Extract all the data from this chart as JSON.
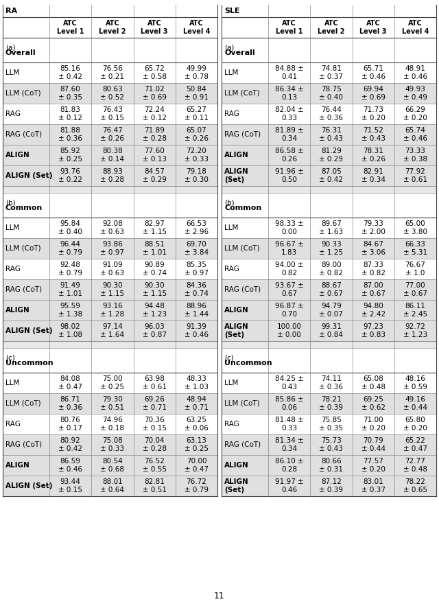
{
  "page_number": "11",
  "col_headers": [
    "ATC\nLevel 1",
    "ATC\nLevel 2",
    "ATC\nLevel 3",
    "ATC\nLevel 4"
  ],
  "sections": [
    {
      "label_light": "(a)",
      "label_bold": "Overall",
      "ra_rows": [
        {
          "name": "LLM",
          "vals": [
            "85.16\n± 0.42",
            "76.56\n± 0.21",
            "65.72\n± 0.58",
            "49.99\n± 0.78"
          ],
          "bold": false,
          "shaded": false
        },
        {
          "name": "LLM (CoT)",
          "vals": [
            "87.60\n± 0.35",
            "80.63\n± 0.52",
            "71.02\n± 0.69",
            "50.84\n± 0.91"
          ],
          "bold": false,
          "shaded": true
        },
        {
          "name": "RAG",
          "vals": [
            "81.83\n± 0.12",
            "76.43\n± 0.15",
            "72.24\n± 0.12",
            "65.27\n± 0.11"
          ],
          "bold": false,
          "shaded": false
        },
        {
          "name": "RAG (CoT)",
          "vals": [
            "81.88\n± 0.36",
            "76.47\n± 0.26",
            "71.89\n± 0.28",
            "65.07\n± 0.26"
          ],
          "bold": false,
          "shaded": true
        },
        {
          "name": "ALIGN",
          "vals": [
            "85.92\n± 0.25",
            "80.38\n± 0.14",
            "77.60\n± 0.13",
            "72.20\n± 0.33"
          ],
          "bold": true,
          "shaded": true
        },
        {
          "name": "ALIGN (Set)",
          "vals": [
            "93.76\n± 0.22",
            "88.93\n± 0.28",
            "84.57\n± 0.29",
            "79.18\n± 0.30"
          ],
          "bold": true,
          "shaded": true
        }
      ],
      "sle_rows": [
        {
          "name": "LLM",
          "vals": [
            "84.88 ±\n0.41",
            "74.81\n± 0.37",
            "65.71\n± 0.46",
            "48.91\n± 0.46"
          ],
          "bold": false,
          "shaded": false
        },
        {
          "name": "LLM (CoT)",
          "vals": [
            "86.34 ±\n0.13",
            "78.75\n± 0.40",
            "69.94\n± 0.69",
            "49.93\n± 0.49"
          ],
          "bold": false,
          "shaded": true
        },
        {
          "name": "RAG",
          "vals": [
            "82.04 ±\n0.33",
            "76.44\n± 0.36",
            "71.73\n± 0.20",
            "66.29\n± 0.20"
          ],
          "bold": false,
          "shaded": false
        },
        {
          "name": "RAG (CoT)",
          "vals": [
            "81.89 ±\n0.34",
            "76.31\n± 0.43",
            "71.52\n± 0.43",
            "65.74\n± 0.46"
          ],
          "bold": false,
          "shaded": true
        },
        {
          "name": "ALIGN",
          "vals": [
            "86.58 ±\n0.26",
            "81.29\n± 0.29",
            "78.31\n± 0.26",
            "73.33\n± 0.38"
          ],
          "bold": true,
          "shaded": true
        },
        {
          "name": "ALIGN\n(Set)",
          "vals": [
            "91.96 ±\n0.50",
            "87.05\n± 0.42",
            "82.91\n± 0.34",
            "77.92\n± 0.61"
          ],
          "bold": true,
          "shaded": true
        }
      ]
    },
    {
      "label_light": "(b)",
      "label_bold": "Common",
      "ra_rows": [
        {
          "name": "LLM",
          "vals": [
            "95.84\n± 0.40",
            "92.08\n± 0.63",
            "82.97\n± 1.15",
            "66.53\n± 2.96"
          ],
          "bold": false,
          "shaded": false
        },
        {
          "name": "LLM (CoT)",
          "vals": [
            "96.44\n± 0.79",
            "93.86\n± 0.97",
            "88.51\n± 1.01",
            "69.70\n± 3.84"
          ],
          "bold": false,
          "shaded": true
        },
        {
          "name": "RAG",
          "vals": [
            "92.48\n± 0.79",
            "91.09\n± 0.63",
            "90.89\n± 0.74",
            "85.35\n± 0.97"
          ],
          "bold": false,
          "shaded": false
        },
        {
          "name": "RAG (CoT)",
          "vals": [
            "91.49\n± 1.01",
            "90.30\n± 1.15",
            "90.30\n± 1.15",
            "84.36\n± 0.74"
          ],
          "bold": false,
          "shaded": true
        },
        {
          "name": "ALIGN",
          "vals": [
            "95.59\n± 1.38",
            "93.16\n± 1.28",
            "94.48\n± 1.23",
            "88.96\n± 1.44"
          ],
          "bold": true,
          "shaded": true
        },
        {
          "name": "ALIGN (Set)",
          "vals": [
            "98.02\n± 1.08",
            "97.14\n± 1.64",
            "96.03\n± 0.87",
            "91.39\n± 0.46"
          ],
          "bold": true,
          "shaded": true
        }
      ],
      "sle_rows": [
        {
          "name": "LLM",
          "vals": [
            "98.33 ±\n0.00",
            "89.67\n± 1.63",
            "79.33\n± 2.00",
            "65.00\n± 3.80"
          ],
          "bold": false,
          "shaded": false
        },
        {
          "name": "LLM (CoT)",
          "vals": [
            "96.67 ±\n1.83",
            "90.33\n± 1.25",
            "84.67\n± 3.06",
            "66.33\n± 5.31"
          ],
          "bold": false,
          "shaded": true
        },
        {
          "name": "RAG",
          "vals": [
            "94.00 ±\n0.82",
            "89.00\n± 0.82",
            "87.33\n± 0.82",
            "76.67\n± 1.0"
          ],
          "bold": false,
          "shaded": false
        },
        {
          "name": "RAG (CoT)",
          "vals": [
            "93.67 ±\n0.67",
            "88.67\n± 0.67",
            "87.00\n± 0.67",
            "77.00\n± 0.67"
          ],
          "bold": false,
          "shaded": true
        },
        {
          "name": "ALIGN",
          "vals": [
            "96.87 ±\n0.70",
            "94.79\n± 0.07",
            "94.80\n± 2.42",
            "86.11\n± 2.45"
          ],
          "bold": true,
          "shaded": true
        },
        {
          "name": "ALIGN\n(Set)",
          "vals": [
            "100.00\n± 0.00",
            "99.31\n± 0.84",
            "97.23\n± 0.83",
            "92.72\n± 1.23"
          ],
          "bold": true,
          "shaded": true
        }
      ]
    },
    {
      "label_light": "(c)",
      "label_bold": "Uncommon",
      "ra_rows": [
        {
          "name": "LLM",
          "vals": [
            "84.08\n± 0.47",
            "75.00\n± 0.25",
            "63.98\n± 0.61",
            "48.33\n± 1.03"
          ],
          "bold": false,
          "shaded": false
        },
        {
          "name": "LLM (CoT)",
          "vals": [
            "86.71\n± 0.36",
            "79.30\n± 0.51",
            "69.26\n± 0.71",
            "48.94\n± 0.71"
          ],
          "bold": false,
          "shaded": true
        },
        {
          "name": "RAG",
          "vals": [
            "80.76\n± 0.17",
            "74.96\n± 0.18",
            "70.36\n± 0.15",
            "63.25\n± 0.06"
          ],
          "bold": false,
          "shaded": false
        },
        {
          "name": "RAG (CoT)",
          "vals": [
            "80.92\n± 0.42",
            "75.08\n± 0.33",
            "70.04\n± 0.28",
            "63.13\n± 0.25"
          ],
          "bold": false,
          "shaded": true
        },
        {
          "name": "ALIGN",
          "vals": [
            "86.59\n± 0.46",
            "80.54\n± 0.68",
            "76.52\n± 0.55",
            "70.00\n± 0.47"
          ],
          "bold": true,
          "shaded": true
        },
        {
          "name": "ALIGN (Set)",
          "vals": [
            "93.44\n± 0.15",
            "88.01\n± 0.64",
            "82.81\n± 0.51",
            "76.72\n± 0.79"
          ],
          "bold": true,
          "shaded": true
        }
      ],
      "sle_rows": [
        {
          "name": "LLM",
          "vals": [
            "84.25 ±\n0.43",
            "74.11\n± 0.36",
            "65.08\n± 0.48",
            "48.16\n± 0.59"
          ],
          "bold": false,
          "shaded": false
        },
        {
          "name": "LLM (CoT)",
          "vals": [
            "85.86 ±\n0.06",
            "78.21\n± 0.39",
            "69.25\n± 0.62",
            "49.16\n± 0.44"
          ],
          "bold": false,
          "shaded": true
        },
        {
          "name": "RAG",
          "vals": [
            "81.48 ±\n0.33",
            "75.85\n± 0.35",
            "71.00\n± 0.20",
            "65.80\n± 0.20"
          ],
          "bold": false,
          "shaded": false
        },
        {
          "name": "RAG (CoT)",
          "vals": [
            "81.34 ±\n0.34",
            "75.73\n± 0.43",
            "70.79\n± 0.44",
            "65.22\n± 0.47"
          ],
          "bold": false,
          "shaded": true
        },
        {
          "name": "ALIGN",
          "vals": [
            "86.10 ±\n0.28",
            "80.66\n± 0.31",
            "77.57\n± 0.20",
            "72.77\n± 0.48"
          ],
          "bold": true,
          "shaded": true
        },
        {
          "name": "ALIGN\n(Set)",
          "vals": [
            "91.97 ±\n0.46",
            "87.12\n± 0.39",
            "83.01\n± 0.37",
            "78.22\n± 0.65"
          ],
          "bold": true,
          "shaded": true
        }
      ]
    }
  ],
  "white_color": "#ffffff",
  "shaded_color": "#e0e0e0",
  "section_gap_color": "#e8e8e8",
  "header_color": "#ffffff",
  "border_color": "#888888",
  "thick_border": "#444444"
}
